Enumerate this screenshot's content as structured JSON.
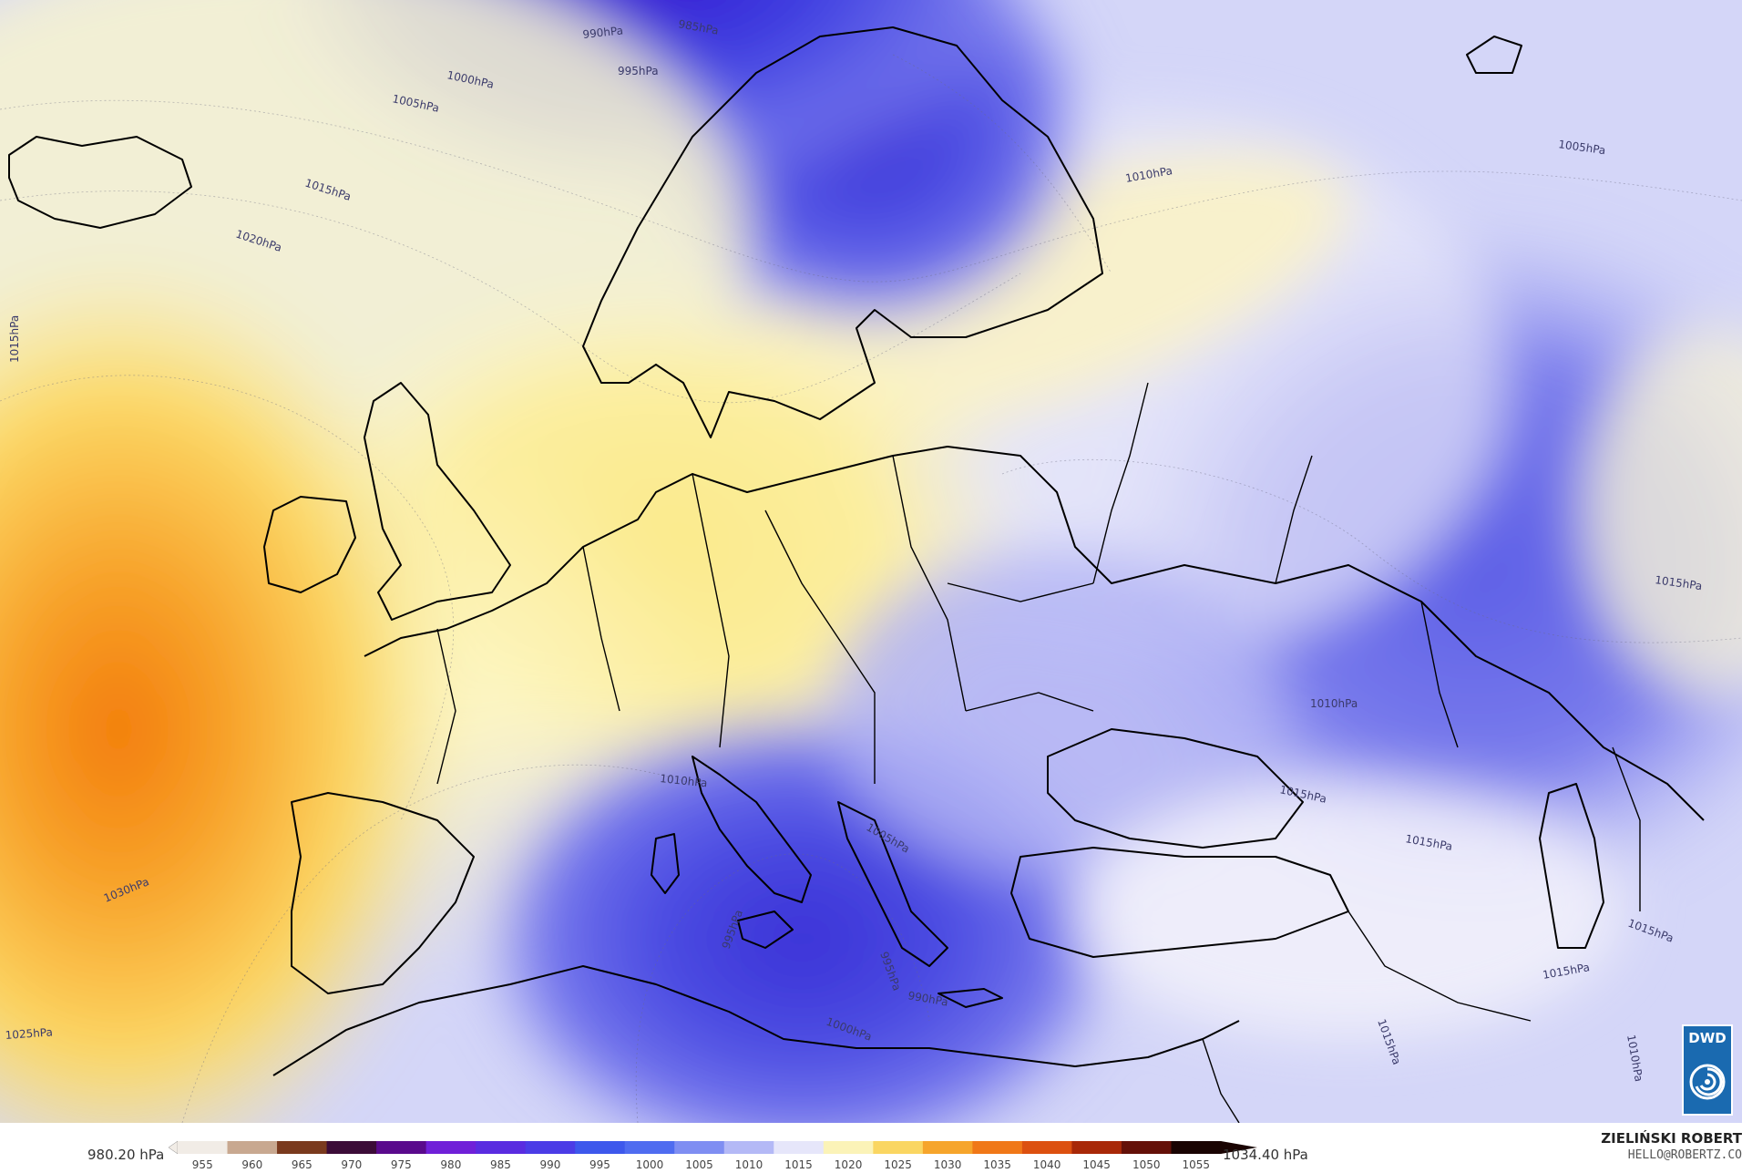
{
  "map": {
    "colors": {
      "high_core": "#f27a0a",
      "high_mid": "#f8b53a",
      "high_outer": "#fbe98a",
      "mid_ridge": "#fdf6c4",
      "neutral": "#eef0fb",
      "low_outer": "#8a8cf0",
      "low_mid": "#5c5ee6",
      "low_core": "#3a30d6",
      "coastline": "#000000"
    },
    "isobar_labels": [
      {
        "text": "985hPa",
        "name": "isobar-label-985-north"
      },
      {
        "text": "990hPa",
        "name": "isobar-label-990-north"
      },
      {
        "text": "995hPa",
        "name": "isobar-label-995-north"
      },
      {
        "text": "1000hPa",
        "name": "isobar-label-1000-north"
      },
      {
        "text": "1005hPa",
        "name": "isobar-label-1005-north"
      },
      {
        "text": "1015hPa",
        "name": "isobar-label-1015-atlantic-north"
      },
      {
        "text": "1020hPa",
        "name": "isobar-label-1020-atlantic"
      },
      {
        "text": "1015hPa",
        "name": "isobar-label-1015-west-edge"
      },
      {
        "text": "1010hPa",
        "name": "isobar-label-1010-russia"
      },
      {
        "text": "1005hPa",
        "name": "isobar-label-1005-urals"
      },
      {
        "text": "1015hPa",
        "name": "isobar-label-1015-east"
      },
      {
        "text": "1010hPa",
        "name": "isobar-label-1010-ukraine"
      },
      {
        "text": "1010hPa",
        "name": "isobar-label-1010-ligurian"
      },
      {
        "text": "1015hPa",
        "name": "isobar-label-1015-black-sea"
      },
      {
        "text": "1015hPa",
        "name": "isobar-label-1015-caucasus"
      },
      {
        "text": "1005hPa",
        "name": "isobar-label-1005-adriatic"
      },
      {
        "text": "1030hPa",
        "name": "isobar-label-1030-atlantic"
      },
      {
        "text": "1025hPa",
        "name": "isobar-label-1025-southwest"
      },
      {
        "text": "995hPa",
        "name": "isobar-label-995-sicily"
      },
      {
        "text": "995hPa",
        "name": "isobar-label-995-ionian"
      },
      {
        "text": "990hPa",
        "name": "isobar-label-990-crete"
      },
      {
        "text": "1000hPa",
        "name": "isobar-label-1000-libya"
      },
      {
        "text": "1015hPa",
        "name": "isobar-label-1015-caspian"
      },
      {
        "text": "1015hPa",
        "name": "isobar-label-1015-iran"
      },
      {
        "text": "1015hPa",
        "name": "isobar-label-1015-mideast"
      },
      {
        "text": "1010hPa",
        "name": "isobar-label-1010-southeast"
      }
    ]
  },
  "legend": {
    "min_label": "980.20 hPa",
    "max_label": "1034.40 hPa",
    "ticks": [
      "955",
      "960",
      "965",
      "970",
      "975",
      "980",
      "985",
      "990",
      "995",
      "1000",
      "1005",
      "1010",
      "1015",
      "1020",
      "1025",
      "1030",
      "1035",
      "1040",
      "1045",
      "1050",
      "1055"
    ],
    "colors": [
      "#f1ece6",
      "#c8a890",
      "#7a3a1e",
      "#3c0c38",
      "#5a0a8c",
      "#7020d8",
      "#5a2ce0",
      "#4b3ce6",
      "#3d58ec",
      "#4f6cf0",
      "#7f8ef2",
      "#b4b9f6",
      "#e6e6fa",
      "#fbf3b8",
      "#fad662",
      "#f6a52c",
      "#f07818",
      "#dc5010",
      "#a82808",
      "#641008",
      "#1a0402"
    ]
  },
  "credits": {
    "author": "ZIELIŃSKI ROBERT",
    "contact": "HELLO@ROBERTZ.CO",
    "logo_text": "DWD"
  }
}
